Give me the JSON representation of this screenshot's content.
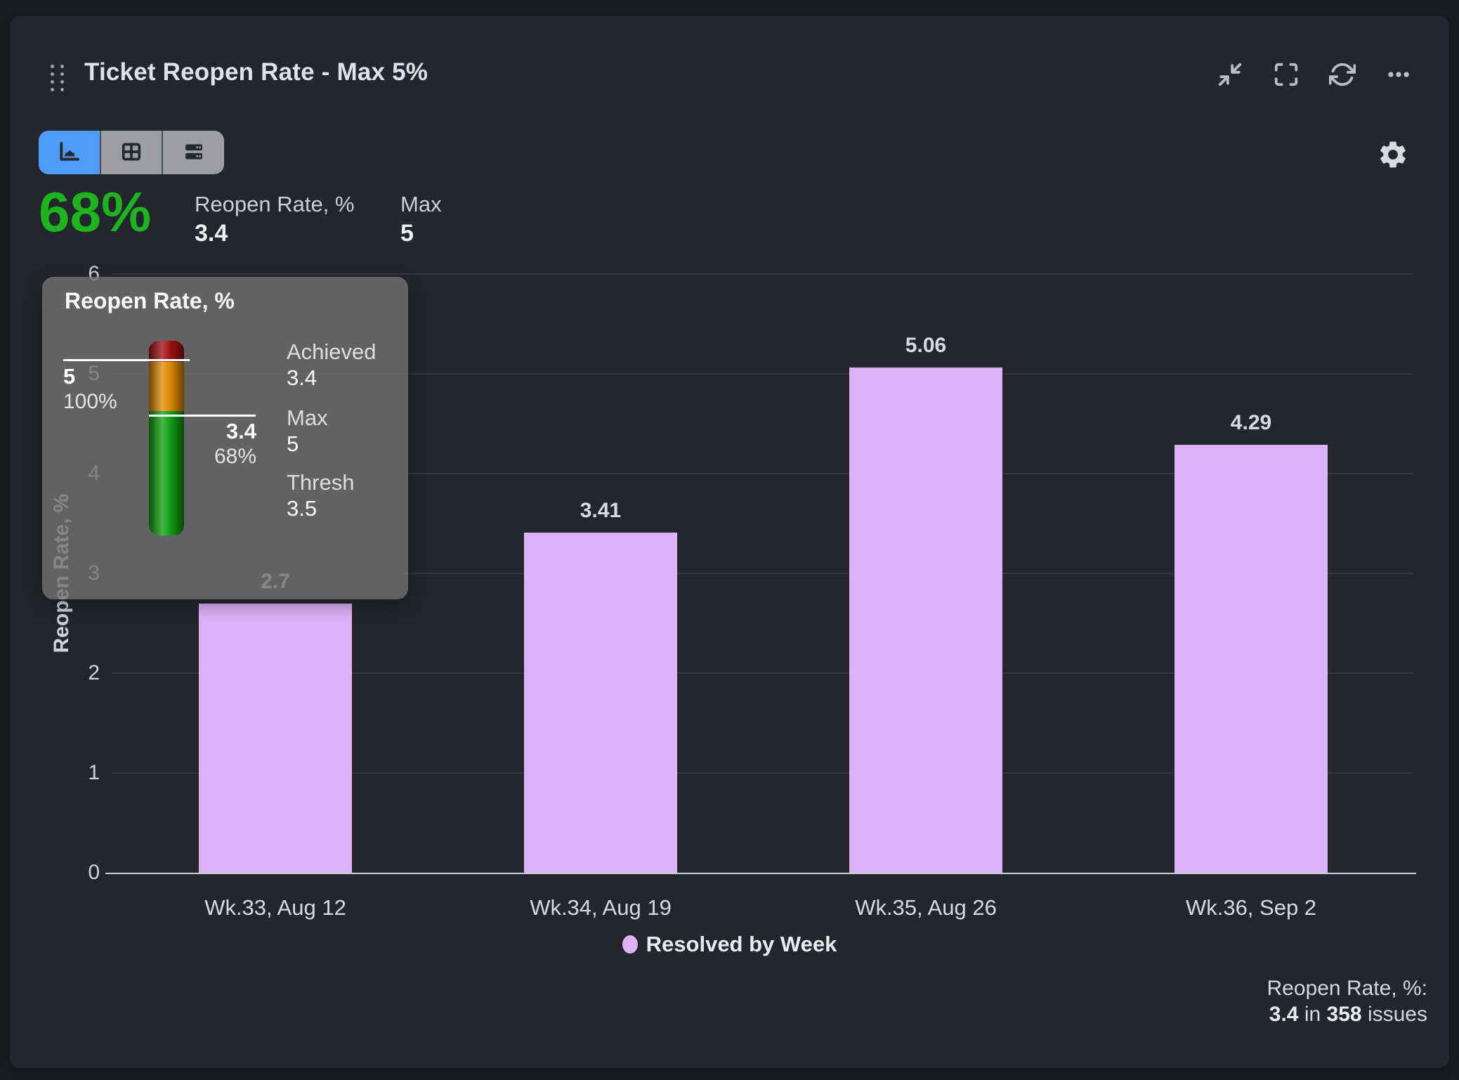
{
  "card": {
    "title": "Ticket Reopen Rate - Max 5%",
    "header_actions": {
      "collapse": "Collapse",
      "fullscreen": "Fullscreen",
      "refresh": "Refresh",
      "more": "More options"
    },
    "kpi": {
      "percent": "68%",
      "metric_label": "Reopen Rate, %",
      "metric_value": "3.4",
      "max_label": "Max",
      "max_value": "5"
    },
    "footer": {
      "label": "Reopen Rate, %:",
      "value": "3.4",
      "conjunction": "in",
      "count": "358",
      "suffix": "issues"
    }
  },
  "tooltip": {
    "title": "Reopen Rate, %",
    "gauge": {
      "max_value": "5",
      "max_percent": "100%",
      "achieved_value": "3.4",
      "achieved_percent": "68%",
      "color_top": "#a31210",
      "color_middle": "#e08e03",
      "color_bottom": "#12a312"
    },
    "details": [
      {
        "label": "Achieved",
        "value": "3.4"
      },
      {
        "label": "Max",
        "value": "5"
      },
      {
        "label": "Thresh",
        "value": "3.5"
      }
    ]
  },
  "chart_data": {
    "type": "bar",
    "title": "Ticket Reopen Rate - Max 5%",
    "categories": [
      "Wk.33, Aug 12",
      "Wk.34, Aug 19",
      "Wk.35, Aug 26",
      "Wk.36, Sep 2"
    ],
    "series": [
      {
        "name": "Resolved by Week",
        "values": [
          2.7,
          3.41,
          5.06,
          4.29
        ],
        "labels": [
          "2.7",
          "3.41",
          "5.06",
          "4.29"
        ],
        "color": "#deb2f8"
      }
    ],
    "xlabel": "",
    "ylabel": "Reopen Rate, %",
    "ylim": [
      0,
      6
    ],
    "yticks": [
      0,
      1,
      2,
      3,
      4,
      5,
      6
    ],
    "grid": true,
    "legend_position": "bottom"
  },
  "colors": {
    "page_bg": "#191d22",
    "card_bg": "#23272d",
    "top_strip": "#99a4b7",
    "accent_blue": "#4f9cf8",
    "toggle_gray": "#9d9ea1",
    "kpi_green": "#1eb41e",
    "bar_purple": "#deb2f8"
  }
}
